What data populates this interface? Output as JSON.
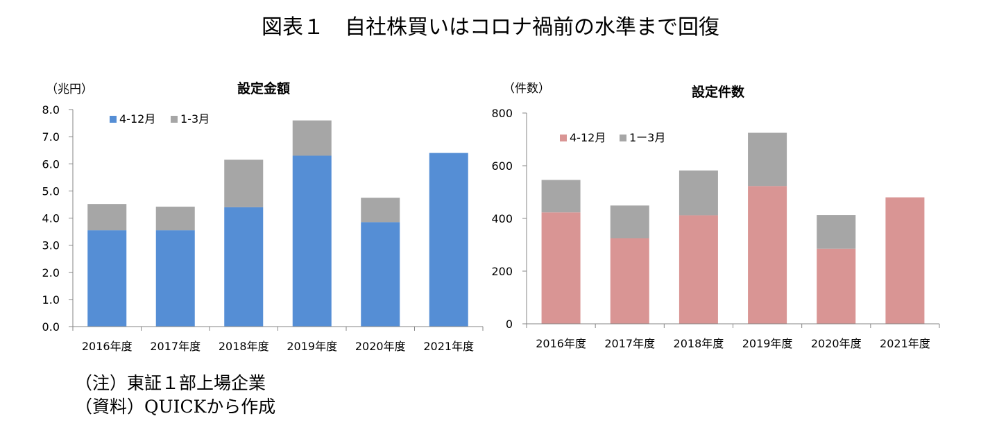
{
  "page": {
    "title": "図表１　自社株買いはコロナ禍前の水準まで回復",
    "notes": [
      "（注）東証１部上場企業",
      "（資料）QUICKから作成"
    ]
  },
  "colors": {
    "amount_main": "#558ed5",
    "count_main": "#d99594",
    "q1_3": "#a6a6a6",
    "axis": "#868686"
  },
  "chart_data": [
    {
      "type": "bar",
      "stacked": true,
      "title": "設定金額",
      "unit_label": "（兆円）",
      "categories": [
        "2016年度",
        "2017年度",
        "2018年度",
        "2019年度",
        "2020年度",
        "2021年度"
      ],
      "series": [
        {
          "name": "4-12月",
          "color": "#558ed5",
          "values": [
            3.55,
            3.55,
            4.4,
            6.3,
            3.85,
            6.4
          ]
        },
        {
          "name": "1-3月",
          "color": "#a6a6a6",
          "values": [
            0.97,
            0.87,
            1.75,
            1.3,
            0.9,
            0
          ]
        }
      ],
      "ylim": [
        0,
        8
      ],
      "yticks": [
        "0.0",
        "1.0",
        "2.0",
        "3.0",
        "4.0",
        "5.0",
        "6.0",
        "7.0",
        "8.0"
      ],
      "grid": false,
      "legend_position": "top-left"
    },
    {
      "type": "bar",
      "stacked": true,
      "title": "設定件数",
      "unit_label": "（件数）",
      "categories": [
        "2016年度",
        "2017年度",
        "2018年度",
        "2019年度",
        "2020年度",
        "2021年度"
      ],
      "series": [
        {
          "name": "4-12月",
          "color": "#d99594",
          "values": [
            423,
            325,
            412,
            523,
            285,
            480
          ]
        },
        {
          "name": "1ー3月",
          "color": "#a6a6a6",
          "values": [
            123,
            124,
            170,
            202,
            128,
            0
          ]
        }
      ],
      "ylim": [
        0,
        800
      ],
      "yticks": [
        "0",
        "200",
        "400",
        "600",
        "800"
      ],
      "grid": false,
      "legend_position": "top-left"
    }
  ]
}
